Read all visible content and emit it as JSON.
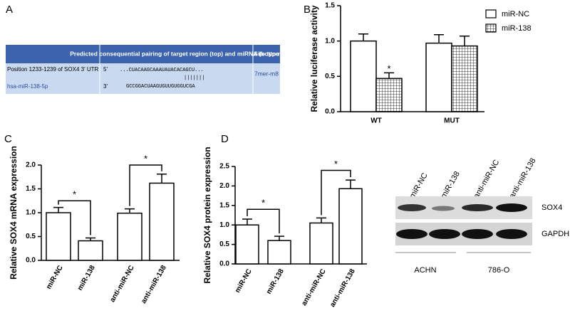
{
  "panel_labels": [
    "A",
    "B",
    "C",
    "D"
  ],
  "table": {
    "header": [
      "Predicted consequential pairing of target region (top) and miRNA (bottom)",
      "Site type"
    ],
    "rows": [
      {
        "label": "Position 1233-1239 of SOX4 3' UTR",
        "end": "5'",
        "sequence": "...CUACAAGCAAAUAUACACAGCU..."
      },
      {
        "label": "hsa-miR-138-5p",
        "end": "3'",
        "sequence": "GCCGGACUAAGUGUUGUGGUCGA"
      }
    ],
    "pairing": "|||||||",
    "site_type": "7mer-m8"
  },
  "blot": {
    "lanes": [
      "miR-NC",
      "miR-138",
      "anti-miR-NC",
      "anti-miR-138"
    ],
    "bands": [
      "SOX4",
      "GAPDH"
    ],
    "groups": [
      "ACHN",
      "786-O"
    ]
  },
  "chart_data": [
    {
      "type": "grouped-bar",
      "y_label": "Relative luciferase activity",
      "categories": [
        "WT",
        "MUT"
      ],
      "series": [
        {
          "name": "miR-NC",
          "color": "#ffffff",
          "values": [
            1.0,
            0.97
          ],
          "errors": [
            0.1,
            0.12
          ]
        },
        {
          "name": "miR-138",
          "color": "#ffffff",
          "hatch": "grid",
          "values": [
            0.47,
            0.93
          ],
          "errors": [
            0.08,
            0.14
          ]
        }
      ],
      "annotations": [
        {
          "text": "*",
          "series": 1,
          "index": 0
        }
      ],
      "ylim": [
        0,
        1.5
      ],
      "yticks": [
        {
          "value": 0,
          "label": "0.0"
        },
        {
          "value": 0.5,
          "label": "0.5"
        },
        {
          "value": 1,
          "label": "1.0"
        },
        {
          "value": 1.5,
          "label": "1.5"
        }
      ],
      "legend": "right"
    },
    {
      "type": "bar",
      "y_label": "Relative SOX4 mRNA expression",
      "categories": [
        "miR-NC",
        "miR-138",
        "anti-miR-NC",
        "anti-miR-138"
      ],
      "values": [
        1.0,
        0.41,
        0.99,
        1.62
      ],
      "errors": [
        0.11,
        0.06,
        0.09,
        0.19
      ],
      "color": "#ffffff",
      "significance": [
        {
          "bars": [
            0,
            1
          ],
          "y": 1.25,
          "label": "*"
        },
        {
          "bars": [
            2,
            3
          ],
          "y": 2.0,
          "label": "*"
        }
      ],
      "ylim": [
        0,
        2
      ],
      "yticks": [
        {
          "value": 0,
          "label": "0.0"
        },
        {
          "value": 0.5,
          "label": "0.5"
        },
        {
          "value": 1,
          "label": "1.0"
        },
        {
          "value": 1.5,
          "label": "1.5"
        },
        {
          "value": 2,
          "label": "2.0"
        }
      ]
    },
    {
      "type": "bar",
      "y_label": "Relative SOX4 protein expression",
      "categories": [
        "miR-NC",
        "miR-138",
        "anti-miR-NC",
        "anti-miR-138"
      ],
      "values": [
        1.0,
        0.6,
        1.05,
        1.93
      ],
      "errors": [
        0.15,
        0.11,
        0.13,
        0.22
      ],
      "color": "#ffffff",
      "significance": [
        {
          "bars": [
            0,
            1
          ],
          "y": 1.4,
          "label": "*"
        },
        {
          "bars": [
            2,
            3
          ],
          "y": 2.4,
          "label": "*"
        }
      ],
      "ylim": [
        0,
        2.5
      ],
      "yticks": [
        {
          "value": 0,
          "label": "0.0"
        },
        {
          "value": 0.5,
          "label": "0.5"
        },
        {
          "value": 1,
          "label": "1.0"
        },
        {
          "value": 1.5,
          "label": "1.5"
        },
        {
          "value": 2,
          "label": "2.0"
        },
        {
          "value": 2.5,
          "label": "2.5"
        }
      ]
    }
  ]
}
